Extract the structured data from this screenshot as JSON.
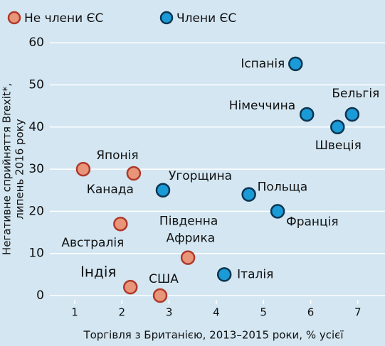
{
  "chart_data": {
    "type": "scatter",
    "xlabel": "Торгівля з Британією, 2013–2015 роки, % усієї",
    "ylabel": [
      "Негативне сприйняття Brexit*,",
      "липень 2016 року"
    ],
    "xlim": [
      0.5,
      7.6
    ],
    "ylim": [
      0,
      62
    ],
    "xticks": [
      1,
      2,
      3,
      4,
      5,
      6,
      7
    ],
    "yticks": [
      0,
      10,
      20,
      30,
      40,
      50,
      60
    ],
    "grid": true,
    "legend": "top-left",
    "series": [
      {
        "name": "Не члени ЄС",
        "color": "#e8957a",
        "labels": [
          "Японія",
          "Канада",
          "Австралія",
          "Південна Африка",
          "Індія",
          "США"
        ],
        "x": [
          1.18,
          2.25,
          1.97,
          3.4,
          2.18,
          2.81
        ],
        "values": [
          30,
          29,
          17,
          9,
          2,
          0
        ]
      },
      {
        "name": "Члени ЄС",
        "color": "#1a9ad6",
        "labels": [
          "Іспанія",
          "Німеччина",
          "Бельгія",
          "Швеція",
          "Угорщина",
          "Польща",
          "Франція",
          "Італія"
        ],
        "x": [
          5.68,
          5.92,
          6.88,
          6.57,
          2.87,
          4.69,
          5.3,
          4.17
        ],
        "values": [
          55,
          43,
          43,
          40,
          25,
          24,
          20,
          5
        ]
      }
    ]
  }
}
